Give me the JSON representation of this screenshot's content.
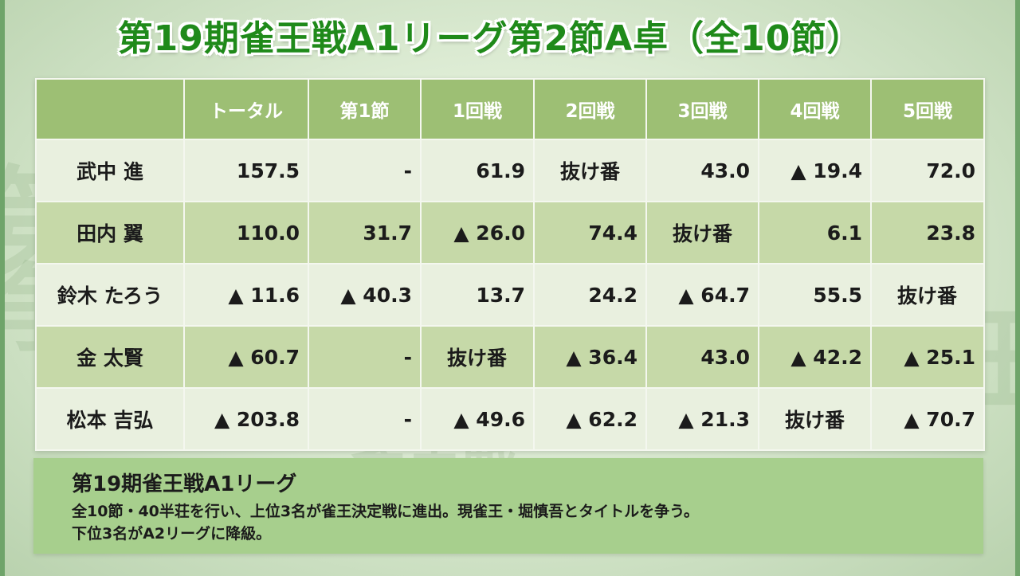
{
  "title": "第19期雀王戦A1リーグ第2節A卓（全10節）",
  "table": {
    "headers": [
      "",
      "トータル",
      "第1節",
      "1回戦",
      "2回戦",
      "3回戦",
      "4回戦",
      "5回戦"
    ],
    "rows": [
      {
        "name": "武中 進",
        "cells": [
          "157.5",
          "-",
          "61.9",
          "抜け番",
          "43.0",
          "▲ 19.4",
          "72.0"
        ]
      },
      {
        "name": "田内 翼",
        "cells": [
          "110.0",
          "31.7",
          "▲ 26.0",
          "74.4",
          "抜け番",
          "6.1",
          "23.8"
        ]
      },
      {
        "name": "鈴木 たろう",
        "cells": [
          "▲ 11.6",
          "▲ 40.3",
          "13.7",
          "24.2",
          "▲ 64.7",
          "55.5",
          "抜け番"
        ]
      },
      {
        "name": "金 太賢",
        "cells": [
          "▲ 60.7",
          "-",
          "抜け番",
          "▲ 36.4",
          "43.0",
          "▲ 42.2",
          "▲ 25.1"
        ]
      },
      {
        "name": "松本 吉弘",
        "cells": [
          "▲ 203.8",
          "-",
          "▲ 49.6",
          "▲ 62.2",
          "▲ 21.3",
          "抜け番",
          "▲ 70.7"
        ]
      }
    ]
  },
  "info": {
    "heading": "第19期雀王戦A1リーグ",
    "line1": "全10節・40半荘を行い、上位3名が雀王決定戦に進出。現雀王・堀慎吾とタイトルを争う。",
    "line2": "下位3名がA2リーグに降級。"
  },
  "colors": {
    "title": "#1f8a1a",
    "header_bg": "#9dbf74",
    "row_light": "#e9f0df",
    "row_dark": "#c6d9a8",
    "info_bg": "#a7cf8d"
  }
}
